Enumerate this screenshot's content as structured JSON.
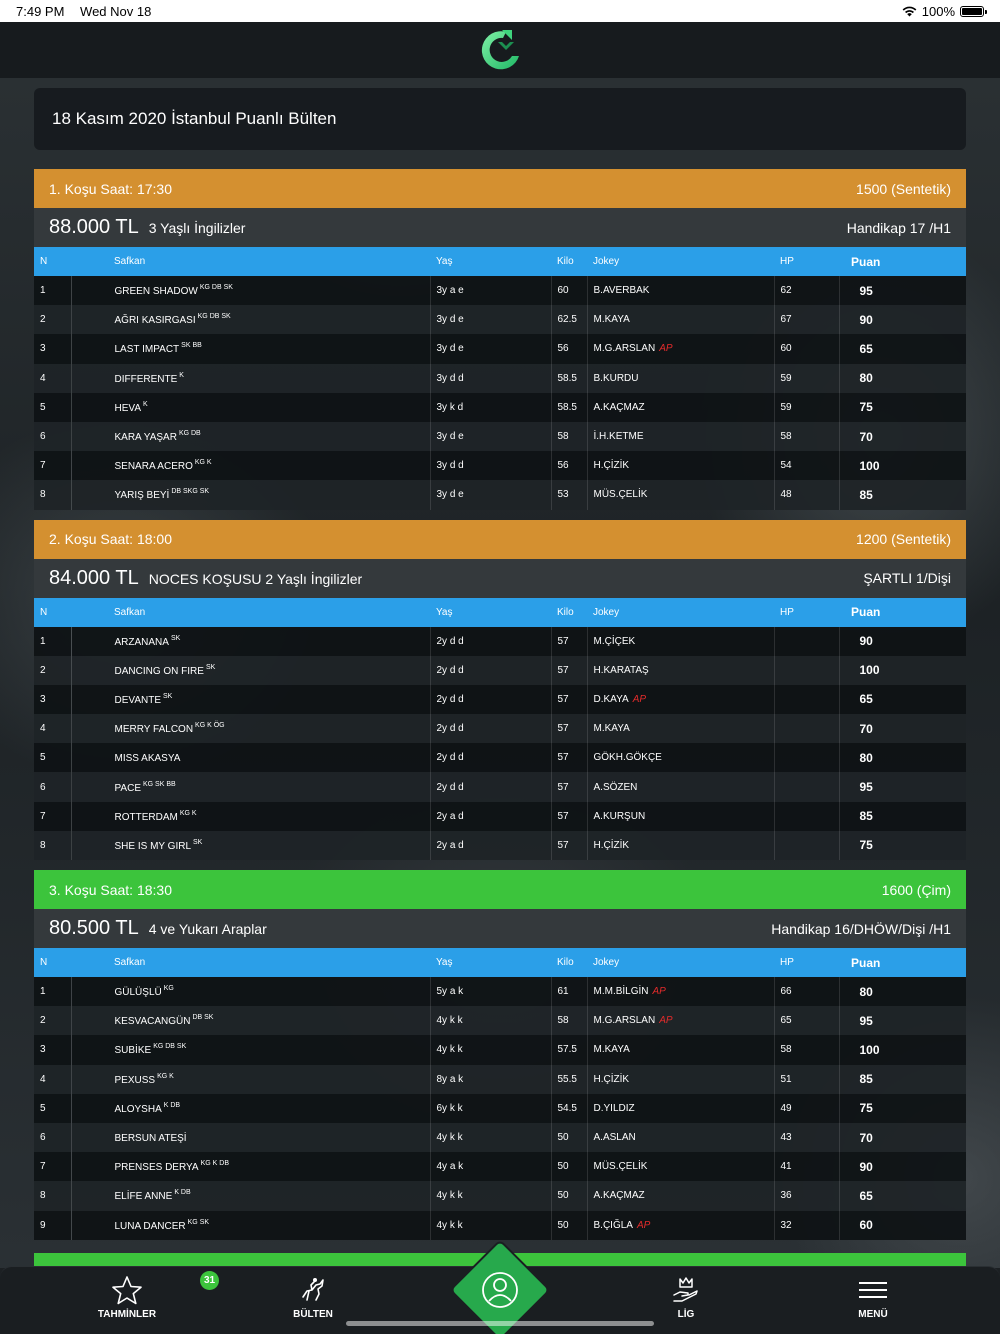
{
  "status_bar": {
    "time": "7:49 PM",
    "date": "Wed Nov 18",
    "battery": "100%"
  },
  "page_title": "18 Kasım 2020 İstanbul Puanlı Bülten",
  "columns": {
    "n": "N",
    "horse": "Safkan",
    "age": "Yaş",
    "weight": "Kilo",
    "jockey": "Jokey",
    "hp": "HP",
    "score": "Puan"
  },
  "colors": {
    "orange": "#d49030",
    "green": "#3cc43c",
    "header_blue": "#2b9fe8",
    "ap_red": "#e32b2b"
  },
  "races": [
    {
      "header": "1. Koşu Saat: 17:30",
      "distance": "1500 (Sentetik)",
      "color": "orange",
      "prize": "88.000 TL",
      "name": "3 Yaşlı İngilizler",
      "type": "Handikap 17 /H1",
      "rows": [
        {
          "n": "1",
          "horse": "GREEN SHADOW",
          "tags": "KG DB SK",
          "age": "3y a e",
          "weight": "60",
          "jockey": "B.AVERBAK",
          "ap": "",
          "hp": "62",
          "score": "95"
        },
        {
          "n": "2",
          "horse": "AĞRI KASIRGASI",
          "tags": "KG DB SK",
          "age": "3y d e",
          "weight": "62.5",
          "jockey": "M.KAYA",
          "ap": "",
          "hp": "67",
          "score": "90"
        },
        {
          "n": "3",
          "horse": "LAST IMPACT",
          "tags": "SK BB",
          "age": "3y d e",
          "weight": "56",
          "jockey": "M.G.ARSLAN",
          "ap": "AP",
          "hp": "60",
          "score": "65"
        },
        {
          "n": "4",
          "horse": "DIFFERENTE",
          "tags": "K",
          "age": "3y d d",
          "weight": "58.5",
          "jockey": "B.KURDU",
          "ap": "",
          "hp": "59",
          "score": "80"
        },
        {
          "n": "5",
          "horse": "HEVA",
          "tags": "K",
          "age": "3y k d",
          "weight": "58.5",
          "jockey": "A.KAÇMAZ",
          "ap": "",
          "hp": "59",
          "score": "75"
        },
        {
          "n": "6",
          "horse": "KARA YAŞAR",
          "tags": "KG DB",
          "age": "3y d e",
          "weight": "58",
          "jockey": "İ.H.KETME",
          "ap": "",
          "hp": "58",
          "score": "70"
        },
        {
          "n": "7",
          "horse": "SENARA ACERO",
          "tags": "KG K",
          "age": "3y d d",
          "weight": "56",
          "jockey": "H.ÇİZİK",
          "ap": "",
          "hp": "54",
          "score": "100"
        },
        {
          "n": "8",
          "horse": "YARIŞ BEYİ",
          "tags": "DB SKG SK",
          "age": "3y d e",
          "weight": "53",
          "jockey": "MÜS.ÇELİK",
          "ap": "",
          "hp": "48",
          "score": "85"
        }
      ]
    },
    {
      "header": "2. Koşu Saat: 18:00",
      "distance": "1200 (Sentetik)",
      "color": "orange",
      "prize": "84.000 TL",
      "name": "NOCES KOŞUSU 2 Yaşlı İngilizler",
      "type": "ŞARTLI 1/Dişi",
      "rows": [
        {
          "n": "1",
          "horse": "ARZANANA",
          "tags": "SK",
          "age": "2y d d",
          "weight": "57",
          "jockey": "M.ÇİÇEK",
          "ap": "",
          "hp": "",
          "score": "90"
        },
        {
          "n": "2",
          "horse": "DANCING ON FIRE",
          "tags": "SK",
          "age": "2y d d",
          "weight": "57",
          "jockey": "H.KARATAŞ",
          "ap": "",
          "hp": "",
          "score": "100"
        },
        {
          "n": "3",
          "horse": "DEVANTE",
          "tags": "SK",
          "age": "2y d d",
          "weight": "57",
          "jockey": "D.KAYA",
          "ap": "AP",
          "hp": "",
          "score": "65"
        },
        {
          "n": "4",
          "horse": "MERRY FALCON",
          "tags": "KG K ÖG",
          "age": "2y d d",
          "weight": "57",
          "jockey": "M.KAYA",
          "ap": "",
          "hp": "",
          "score": "70"
        },
        {
          "n": "5",
          "horse": "MISS AKASYA",
          "tags": "",
          "age": "2y d d",
          "weight": "57",
          "jockey": "GÖKH.GÖKÇE",
          "ap": "",
          "hp": "",
          "score": "80"
        },
        {
          "n": "6",
          "horse": "PACE",
          "tags": "KG SK BB",
          "age": "2y d d",
          "weight": "57",
          "jockey": "A.SÖZEN",
          "ap": "",
          "hp": "",
          "score": "95"
        },
        {
          "n": "7",
          "horse": "ROTTERDAM",
          "tags": "KG K",
          "age": "2y a d",
          "weight": "57",
          "jockey": "A.KURŞUN",
          "ap": "",
          "hp": "",
          "score": "85"
        },
        {
          "n": "8",
          "horse": "SHE IS MY GIRL",
          "tags": "SK",
          "age": "2y a d",
          "weight": "57",
          "jockey": "H.ÇİZİK",
          "ap": "",
          "hp": "",
          "score": "75"
        }
      ]
    },
    {
      "header": "3. Koşu Saat: 18:30",
      "distance": "1600 (Çim)",
      "color": "green",
      "prize": "80.500 TL",
      "name": "4 ve Yukarı Araplar",
      "type": "Handikap 16/DHÖW/Dişi /H1",
      "rows": [
        {
          "n": "1",
          "horse": "GÜLÜŞLÜ",
          "tags": "KG",
          "age": "5y a k",
          "weight": "61",
          "jockey": "M.M.BİLGİN",
          "ap": "AP",
          "hp": "66",
          "score": "80"
        },
        {
          "n": "2",
          "horse": "KESVACANGÜN",
          "tags": "DB SK",
          "age": "4y k k",
          "weight": "58",
          "jockey": "M.G.ARSLAN",
          "ap": "AP",
          "hp": "65",
          "score": "95"
        },
        {
          "n": "3",
          "horse": "SUBİKE",
          "tags": "KG DB SK",
          "age": "4y k k",
          "weight": "57.5",
          "jockey": "M.KAYA",
          "ap": "",
          "hp": "58",
          "score": "100"
        },
        {
          "n": "4",
          "horse": "PEXUSS",
          "tags": "KG K",
          "age": "8y a k",
          "weight": "55.5",
          "jockey": "H.ÇİZİK",
          "ap": "",
          "hp": "51",
          "score": "85"
        },
        {
          "n": "5",
          "horse": "ALOYSHA",
          "tags": "K DB",
          "age": "6y k k",
          "weight": "54.5",
          "jockey": "D.YILDIZ",
          "ap": "",
          "hp": "49",
          "score": "75"
        },
        {
          "n": "6",
          "horse": "BERSUN ATEŞİ",
          "tags": "",
          "age": "4y k k",
          "weight": "50",
          "jockey": "A.ASLAN",
          "ap": "",
          "hp": "43",
          "score": "70"
        },
        {
          "n": "7",
          "horse": "PRENSES DERYA",
          "tags": "KG K DB",
          "age": "4y a k",
          "weight": "50",
          "jockey": "MÜS.ÇELİK",
          "ap": "",
          "hp": "41",
          "score": "90"
        },
        {
          "n": "8",
          "horse": "ELİFE ANNE",
          "tags": "K DB",
          "age": "4y k k",
          "weight": "50",
          "jockey": "A.KAÇMAZ",
          "ap": "",
          "hp": "36",
          "score": "65"
        },
        {
          "n": "9",
          "horse": "LUNA DANCER",
          "tags": "KG SK",
          "age": "4y k k",
          "weight": "50",
          "jockey": "B.ÇIĞLA",
          "ap": "AP",
          "hp": "32",
          "score": "60"
        }
      ]
    }
  ],
  "tabbar": {
    "predictions": "TAHMİNLER",
    "predictions_badge": "31",
    "bulletin": "BÜLTEN",
    "center_icon": "user-icon",
    "league": "LİG",
    "menu": "MENÜ"
  }
}
